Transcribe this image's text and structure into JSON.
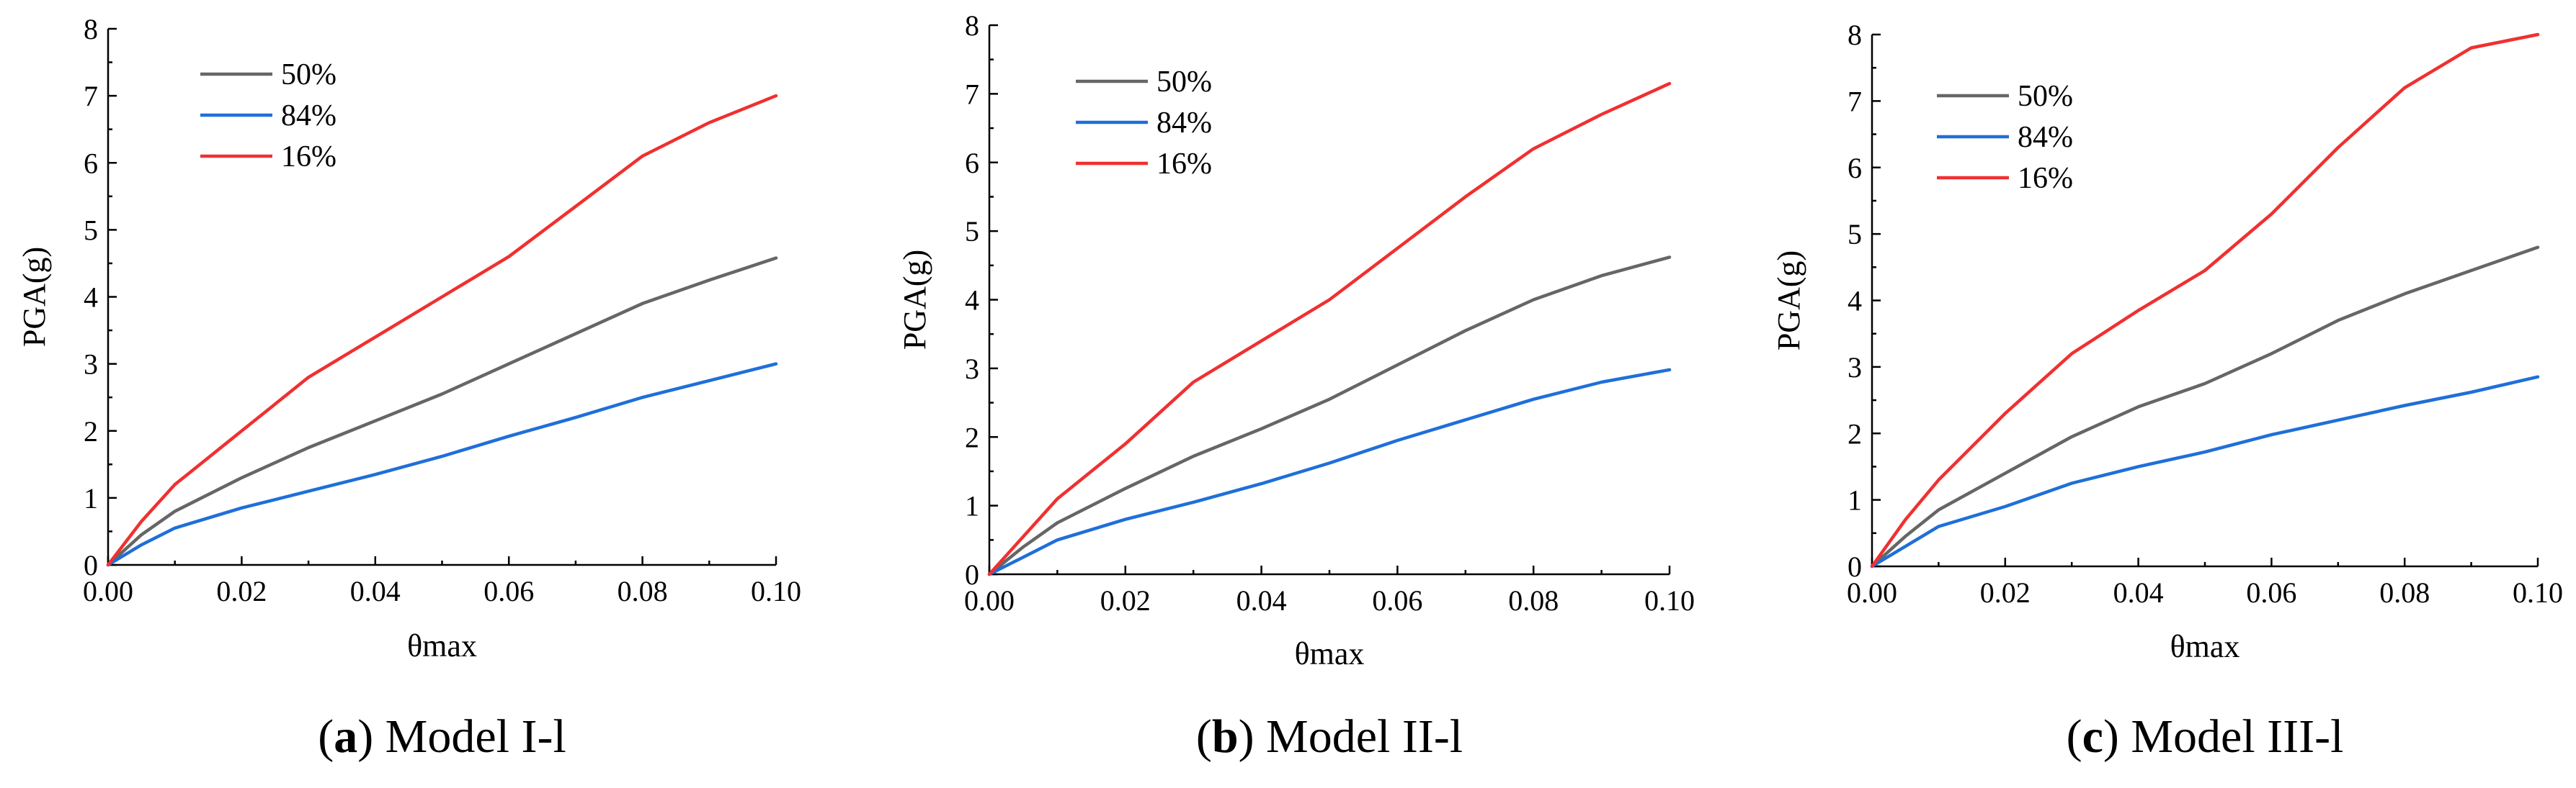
{
  "figure": {
    "colors": {
      "50%": "#666666",
      "84%": "#1f6fd8",
      "16%": "#f03030"
    }
  },
  "chart_data": [
    {
      "type": "line",
      "caption_letter": "a",
      "caption_text": " Model I-l",
      "xlabel": "θmax",
      "ylabel": "PGA(g)",
      "xlim": [
        0,
        0.1
      ],
      "ylim": [
        0,
        8
      ],
      "x_ticks": [
        "0.00",
        "0.02",
        "0.04",
        "0.06",
        "0.08",
        "0.10"
      ],
      "y_ticks": [
        "0",
        "1",
        "2",
        "3",
        "4",
        "5",
        "6",
        "7",
        "8"
      ],
      "legend": [
        "50%",
        "84%",
        "16%"
      ],
      "x": [
        0,
        0.005,
        0.01,
        0.02,
        0.03,
        0.04,
        0.05,
        0.06,
        0.07,
        0.08,
        0.09,
        0.1
      ],
      "series": [
        {
          "name": "50%",
          "values": [
            0,
            0.45,
            0.8,
            1.3,
            1.75,
            2.15,
            2.55,
            3.0,
            3.45,
            3.9,
            4.25,
            4.58
          ]
        },
        {
          "name": "84%",
          "values": [
            0,
            0.3,
            0.55,
            0.85,
            1.1,
            1.35,
            1.62,
            1.92,
            2.2,
            2.5,
            2.75,
            3.0
          ]
        },
        {
          "name": "16%",
          "values": [
            0,
            0.65,
            1.2,
            2.0,
            2.8,
            3.4,
            4.0,
            4.6,
            5.35,
            6.1,
            6.6,
            7.0
          ]
        }
      ]
    },
    {
      "type": "line",
      "caption_letter": "b",
      "caption_text": " Model II-l",
      "xlabel": "θmax",
      "ylabel": "PGA(g)",
      "xlim": [
        0,
        0.1
      ],
      "ylim": [
        0,
        8
      ],
      "x_ticks": [
        "0.00",
        "0.02",
        "0.04",
        "0.06",
        "0.08",
        "0.10"
      ],
      "y_ticks": [
        "0",
        "1",
        "2",
        "3",
        "4",
        "5",
        "6",
        "7",
        "8"
      ],
      "legend": [
        "50%",
        "84%",
        "16%"
      ],
      "x": [
        0,
        0.005,
        0.01,
        0.02,
        0.03,
        0.04,
        0.05,
        0.06,
        0.07,
        0.08,
        0.09,
        0.1
      ],
      "series": [
        {
          "name": "50%",
          "values": [
            0,
            0.4,
            0.75,
            1.25,
            1.72,
            2.12,
            2.55,
            3.05,
            3.55,
            4.0,
            4.35,
            4.62
          ]
        },
        {
          "name": "84%",
          "values": [
            0,
            0.25,
            0.5,
            0.8,
            1.05,
            1.32,
            1.62,
            1.95,
            2.25,
            2.55,
            2.8,
            2.98
          ]
        },
        {
          "name": "16%",
          "values": [
            0,
            0.55,
            1.1,
            1.9,
            2.8,
            3.4,
            4.0,
            4.75,
            5.5,
            6.2,
            6.7,
            7.15
          ]
        }
      ]
    },
    {
      "type": "line",
      "caption_letter": "c",
      "caption_text": " Model III-l",
      "xlabel": "θmax",
      "ylabel": "PGA(g)",
      "xlim": [
        0,
        0.1
      ],
      "ylim": [
        0,
        8
      ],
      "x_ticks": [
        "0.00",
        "0.02",
        "0.04",
        "0.06",
        "0.08",
        "0.10"
      ],
      "y_ticks": [
        "0",
        "1",
        "2",
        "3",
        "4",
        "5",
        "6",
        "7",
        "8"
      ],
      "legend": [
        "50%",
        "84%",
        "16%"
      ],
      "x": [
        0,
        0.005,
        0.01,
        0.02,
        0.03,
        0.04,
        0.05,
        0.06,
        0.07,
        0.08,
        0.09,
        0.1
      ],
      "series": [
        {
          "name": "50%",
          "values": [
            0,
            0.45,
            0.85,
            1.4,
            1.95,
            2.4,
            2.75,
            3.2,
            3.7,
            4.1,
            4.45,
            4.8
          ]
        },
        {
          "name": "84%",
          "values": [
            0,
            0.3,
            0.6,
            0.9,
            1.25,
            1.5,
            1.72,
            1.98,
            2.2,
            2.42,
            2.62,
            2.85
          ]
        },
        {
          "name": "16%",
          "values": [
            0,
            0.7,
            1.3,
            2.3,
            3.2,
            3.85,
            4.45,
            5.3,
            6.3,
            7.2,
            7.8,
            8.0
          ]
        }
      ]
    }
  ]
}
